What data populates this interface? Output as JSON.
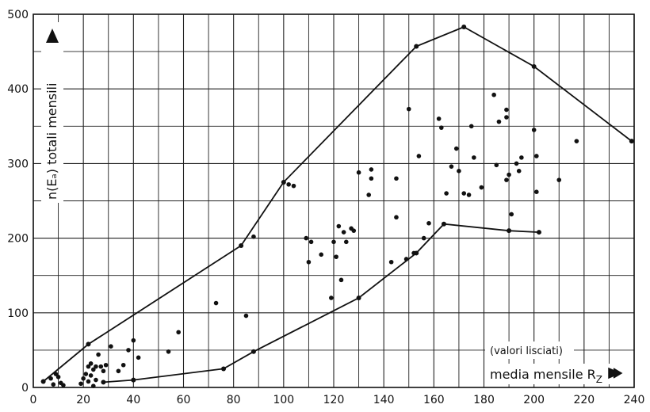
{
  "chart_data": {
    "type": "scatter",
    "ylabel": "n(Eₐ) totali mensili",
    "xlabel": "media mensile R",
    "xlabel_sub": "Z",
    "annotation": "(valori lisciati)",
    "xlim": [
      0,
      240
    ],
    "ylim": [
      0,
      500
    ],
    "x_ticks": [
      0,
      20,
      40,
      60,
      80,
      100,
      120,
      140,
      160,
      180,
      200,
      220,
      240
    ],
    "y_ticks": [
      0,
      100,
      200,
      300,
      400,
      500
    ],
    "grid": true,
    "points": {
      "x": [
        4,
        7,
        8,
        9,
        10,
        11,
        12,
        19,
        20,
        21,
        22,
        22,
        23,
        23,
        24,
        24,
        25,
        25,
        26,
        27,
        28,
        29,
        31,
        34,
        36,
        38,
        40,
        40,
        42,
        54,
        58,
        73,
        85,
        88,
        102,
        104,
        109,
        110,
        111,
        115,
        119,
        120,
        121,
        122,
        123,
        124,
        125,
        127,
        128,
        130,
        134,
        135,
        135,
        143,
        145,
        145,
        149,
        150,
        152,
        154,
        156,
        158,
        162,
        163,
        165,
        167,
        169,
        170,
        172,
        174,
        175,
        176,
        179,
        184,
        185,
        186,
        189,
        189,
        189,
        190,
        191,
        193,
        194,
        195,
        200,
        201,
        201,
        210,
        217
      ],
      "y": [
        8,
        12,
        4,
        18,
        14,
        6,
        3,
        5,
        12,
        18,
        28,
        8,
        32,
        16,
        24,
        2,
        28,
        10,
        44,
        28,
        22,
        30,
        55,
        22,
        30,
        50,
        63,
        10,
        40,
        48,
        74,
        113,
        96,
        202,
        272,
        270,
        200,
        168,
        195,
        178,
        120,
        195,
        175,
        216,
        144,
        208,
        195,
        213,
        210,
        288,
        258,
        292,
        280,
        168,
        228,
        280,
        172,
        373,
        180,
        310,
        200,
        220,
        360,
        348,
        260,
        296,
        320,
        290,
        260,
        258,
        350,
        308,
        268,
        392,
        298,
        356,
        372,
        278,
        362,
        285,
        232,
        300,
        290,
        308,
        345,
        262,
        310,
        278,
        330
      ]
    },
    "upper_envelope": {
      "x": [
        4,
        22,
        83,
        100,
        153,
        172,
        200,
        239
      ],
      "y": [
        8,
        58,
        190,
        275,
        457,
        483,
        430,
        330
      ]
    },
    "lower_envelope": {
      "x": [
        28,
        40,
        76,
        88,
        130,
        153,
        164,
        190,
        202
      ],
      "y": [
        7,
        10,
        25,
        48,
        120,
        180,
        219,
        210,
        208
      ]
    }
  }
}
